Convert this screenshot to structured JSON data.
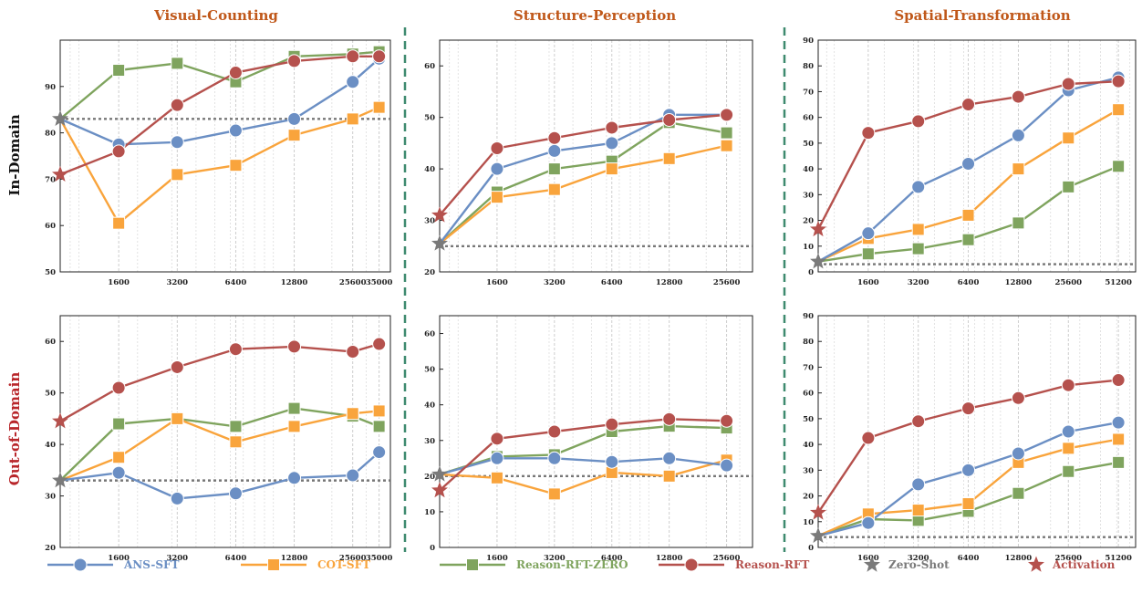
{
  "columns": [
    "Visual-Counting",
    "Structure-Perception",
    "Spatial-Transformation"
  ],
  "rows": [
    "In-Domain",
    "Out-of-Domain"
  ],
  "colors": {
    "ans_sft": "#6b8fc4",
    "cot_sft": "#f9a43c",
    "reason_rft_zero": "#7fa45e",
    "reason_rft": "#b5514d",
    "zero_shot": "#7a7a7a",
    "activation": "#b5514d",
    "column_title": "#c0581a",
    "out_of_domain_label": "#b8262a",
    "divider": "#3e8a6f"
  },
  "legend": [
    {
      "key": "ans_sft",
      "label": "ANS-SFT",
      "marker": "circle",
      "color": "#6b8fc4"
    },
    {
      "key": "cot_sft",
      "label": "COT-SFT",
      "marker": "square",
      "color": "#f9a43c"
    },
    {
      "key": "reason_rft_zero",
      "label": "Reason-RFT-ZERO",
      "marker": "square",
      "color": "#7fa45e"
    },
    {
      "key": "reason_rft",
      "label": "Reason-RFT",
      "marker": "circle",
      "color": "#b5514d"
    },
    {
      "key": "zero_shot",
      "label": "Zero-Shot",
      "marker": "star",
      "color": "#7a7a7a"
    },
    {
      "key": "activation",
      "label": "Activation",
      "marker": "star",
      "color": "#b5514d"
    }
  ],
  "chart_data": [
    {
      "type": "line",
      "task": "Visual-Counting",
      "domain": "In-Domain",
      "x_scale": "log",
      "x_tick_labels": [
        "1600",
        "3200",
        "6400",
        "12800",
        "25600",
        "35000"
      ],
      "x_start": 800,
      "x_end": 40000,
      "y_ticks": [
        50,
        60,
        70,
        80,
        90
      ],
      "ylim": [
        50,
        100
      ],
      "zero_shot": 83,
      "series": [
        {
          "key": "ans_sft",
          "start": 83,
          "x": [
            1600,
            3200,
            6400,
            12800,
            25600,
            35000
          ],
          "values": [
            77.5,
            78,
            80.5,
            83,
            91,
            96
          ]
        },
        {
          "key": "cot_sft",
          "start": 83,
          "x": [
            1600,
            3200,
            6400,
            12800,
            25600,
            35000
          ],
          "values": [
            60.5,
            71,
            73,
            79.5,
            83,
            85.5
          ]
        },
        {
          "key": "reason_rft_zero",
          "start": 83,
          "x": [
            1600,
            3200,
            6400,
            12800,
            25600,
            35000
          ],
          "values": [
            93.5,
            95,
            91,
            96.5,
            97,
            97.5
          ]
        },
        {
          "key": "reason_rft",
          "start": 71,
          "x": [
            1600,
            3200,
            6400,
            12800,
            25600,
            35000
          ],
          "values": [
            76,
            86,
            93,
            95.5,
            96.5,
            96.5
          ]
        }
      ]
    },
    {
      "type": "line",
      "task": "Structure-Perception",
      "domain": "In-Domain",
      "x_scale": "log",
      "x_tick_labels": [
        "1600",
        "3200",
        "6400",
        "12800",
        "25600"
      ],
      "x_start": 800,
      "x_end": 35000,
      "y_ticks": [
        20,
        30,
        40,
        50,
        60
      ],
      "ylim": [
        20,
        65
      ],
      "zero_shot": 25,
      "series": [
        {
          "key": "ans_sft",
          "start": 25.5,
          "x": [
            1600,
            3200,
            6400,
            12800,
            25600
          ],
          "values": [
            40,
            43.5,
            45,
            50.5,
            50.5
          ]
        },
        {
          "key": "cot_sft",
          "start": 25.5,
          "x": [
            1600,
            3200,
            6400,
            12800,
            25600
          ],
          "values": [
            34.5,
            36,
            40,
            42,
            44.5
          ]
        },
        {
          "key": "reason_rft_zero",
          "start": 25.5,
          "x": [
            1600,
            3200,
            6400,
            12800,
            25600
          ],
          "values": [
            35.5,
            40,
            41.5,
            49,
            47
          ]
        },
        {
          "key": "reason_rft",
          "start": 31,
          "x": [
            1600,
            3200,
            6400,
            12800,
            25600
          ],
          "values": [
            44,
            46,
            48,
            49.5,
            50.5
          ]
        }
      ]
    },
    {
      "type": "line",
      "task": "Spatial-Transformation",
      "domain": "In-Domain",
      "x_scale": "log",
      "x_tick_labels": [
        "1600",
        "3200",
        "6400",
        "12800",
        "25600",
        "51200"
      ],
      "x_start": 800,
      "x_end": 65000,
      "y_ticks": [
        0,
        10,
        20,
        30,
        40,
        50,
        60,
        70,
        80,
        90
      ],
      "ylim": [
        0,
        90
      ],
      "zero_shot": 3,
      "series": [
        {
          "key": "ans_sft",
          "start": 4,
          "x": [
            1600,
            3200,
            6400,
            12800,
            25600,
            51200
          ],
          "values": [
            15,
            33,
            42,
            53,
            70.5,
            75.5
          ]
        },
        {
          "key": "cot_sft",
          "start": 4,
          "x": [
            1600,
            3200,
            6400,
            12800,
            25600,
            51200
          ],
          "values": [
            13,
            16.5,
            22,
            40,
            52,
            63
          ]
        },
        {
          "key": "reason_rft_zero",
          "start": 4,
          "x": [
            1600,
            3200,
            6400,
            12800,
            25600,
            51200
          ],
          "values": [
            7,
            9,
            12.5,
            19,
            33,
            41
          ]
        },
        {
          "key": "reason_rft",
          "start": 16.5,
          "x": [
            1600,
            3200,
            6400,
            12800,
            25600,
            51200
          ],
          "values": [
            54,
            58.5,
            65,
            68,
            73,
            74
          ]
        }
      ]
    },
    {
      "type": "line",
      "task": "Visual-Counting",
      "domain": "Out-of-Domain",
      "x_scale": "log",
      "x_tick_labels": [
        "1600",
        "3200",
        "6400",
        "12800",
        "25600",
        "35000"
      ],
      "x_start": 800,
      "x_end": 40000,
      "y_ticks": [
        20,
        30,
        40,
        50,
        60
      ],
      "ylim": [
        20,
        65
      ],
      "zero_shot": 33,
      "series": [
        {
          "key": "ans_sft",
          "start": 33,
          "x": [
            1600,
            3200,
            6400,
            12800,
            25600,
            35000
          ],
          "values": [
            34.5,
            29.5,
            30.5,
            33.5,
            34,
            38.5
          ]
        },
        {
          "key": "cot_sft",
          "start": 33,
          "x": [
            1600,
            3200,
            6400,
            12800,
            25600,
            35000
          ],
          "values": [
            37.5,
            45,
            40.5,
            43.5,
            46,
            46.5
          ]
        },
        {
          "key": "reason_rft_zero",
          "start": 33,
          "x": [
            1600,
            3200,
            6400,
            12800,
            25600,
            35000
          ],
          "values": [
            44,
            45,
            43.5,
            47,
            45.5,
            43.5
          ]
        },
        {
          "key": "reason_rft",
          "start": 44.5,
          "x": [
            1600,
            3200,
            6400,
            12800,
            25600,
            35000
          ],
          "values": [
            51,
            55,
            58.5,
            59,
            58,
            59.5
          ]
        }
      ]
    },
    {
      "type": "line",
      "task": "Structure-Perception",
      "domain": "Out-of-Domain",
      "x_scale": "log",
      "x_tick_labels": [
        "1600",
        "3200",
        "6400",
        "12800",
        "25600"
      ],
      "x_start": 800,
      "x_end": 35000,
      "y_ticks": [
        0,
        10,
        20,
        30,
        40,
        50,
        60
      ],
      "ylim": [
        0,
        65
      ],
      "zero_shot": 20,
      "series": [
        {
          "key": "ans_sft",
          "start": 20.5,
          "x": [
            1600,
            3200,
            6400,
            12800,
            25600
          ],
          "values": [
            25,
            25,
            24,
            25,
            23
          ]
        },
        {
          "key": "cot_sft",
          "start": 20.5,
          "x": [
            1600,
            3200,
            6400,
            12800,
            25600
          ],
          "values": [
            19.5,
            15,
            21,
            20,
            24.5
          ]
        },
        {
          "key": "reason_rft_zero",
          "start": 20.5,
          "x": [
            1600,
            3200,
            6400,
            12800,
            25600
          ],
          "values": [
            25.5,
            26,
            32.5,
            34,
            33.5
          ]
        },
        {
          "key": "reason_rft",
          "start": 16,
          "x": [
            1600,
            3200,
            6400,
            12800,
            25600
          ],
          "values": [
            30.5,
            32.5,
            34.5,
            36,
            35.5
          ]
        }
      ]
    },
    {
      "type": "line",
      "task": "Spatial-Transformation",
      "domain": "Out-of-Domain",
      "x_scale": "log",
      "x_tick_labels": [
        "1600",
        "3200",
        "6400",
        "12800",
        "25600",
        "51200"
      ],
      "x_start": 800,
      "x_end": 65000,
      "y_ticks": [
        0,
        10,
        20,
        30,
        40,
        50,
        60,
        70,
        80,
        90
      ],
      "ylim": [
        0,
        90
      ],
      "zero_shot": 4,
      "series": [
        {
          "key": "ans_sft",
          "start": 4.5,
          "x": [
            1600,
            3200,
            6400,
            12800,
            25600,
            51200
          ],
          "values": [
            9.5,
            24.5,
            30,
            36.5,
            45,
            48.5
          ]
        },
        {
          "key": "cot_sft",
          "start": 4.5,
          "x": [
            1600,
            3200,
            6400,
            12800,
            25600,
            51200
          ],
          "values": [
            13,
            14.5,
            17,
            33,
            38.5,
            42
          ]
        },
        {
          "key": "reason_rft_zero",
          "start": 4.5,
          "x": [
            1600,
            3200,
            6400,
            12800,
            25600,
            51200
          ],
          "values": [
            11,
            10.5,
            14,
            21,
            29.5,
            33
          ]
        },
        {
          "key": "reason_rft",
          "start": 13.5,
          "x": [
            1600,
            3200,
            6400,
            12800,
            25600,
            51200
          ],
          "values": [
            42.5,
            49,
            54,
            58,
            63,
            65
          ]
        }
      ]
    }
  ]
}
